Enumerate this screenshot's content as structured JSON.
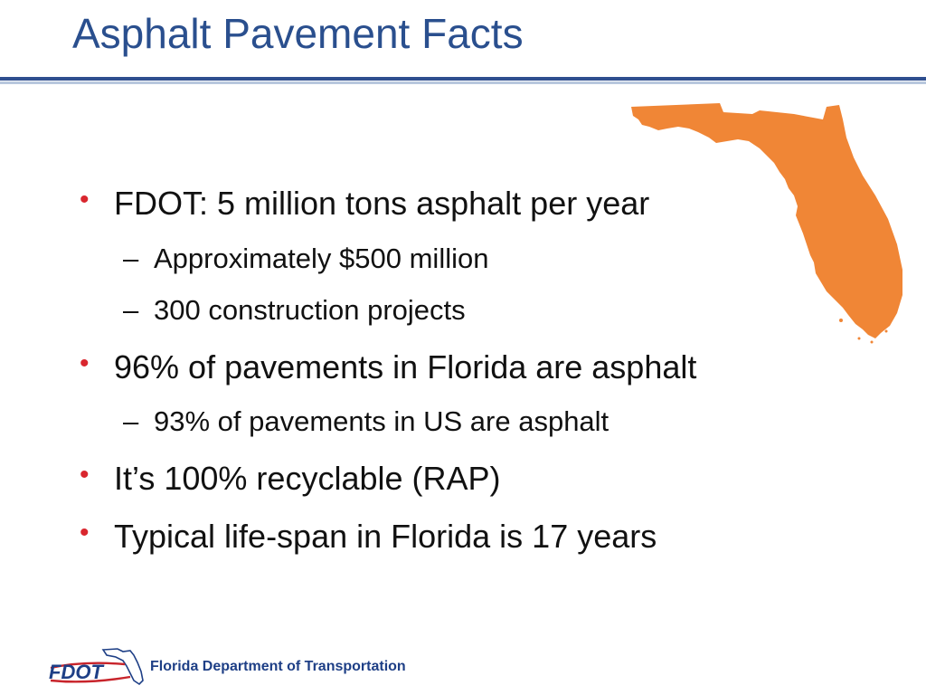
{
  "slide": {
    "title": "Asphalt Pavement Facts",
    "bullets": [
      {
        "text": "FDOT: 5 million tons asphalt per year",
        "sub": [
          {
            "text": "Approximately $500 million"
          },
          {
            "text": "300 construction projects"
          }
        ]
      },
      {
        "text": "96% of pavements in Florida are asphalt",
        "sub": [
          {
            "text": "93% of pavements in US are asphalt"
          }
        ]
      },
      {
        "text": "It’s 100% recyclable (RAP)",
        "sub": []
      },
      {
        "text": "Typical life-span in Florida is 17 years",
        "sub": []
      }
    ],
    "bullet_marker": "•",
    "sub_marker": "–"
  },
  "footer": {
    "logo_text": "FDOT",
    "org_name": "Florida Department of Transportation"
  },
  "colors": {
    "title": "#2a4f8e",
    "bullet_marker": "#d9262e",
    "florida_fill": "#f08636",
    "rule": "#2f4f8f",
    "footer_text": "#1e3f86"
  },
  "icons": {
    "state_map": "florida-map-icon",
    "logo": "fdot-logo-icon"
  }
}
